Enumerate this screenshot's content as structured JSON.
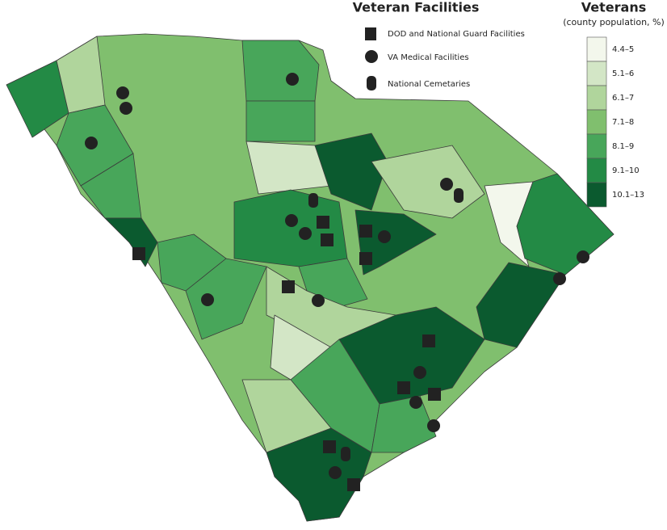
{
  "facilities": {
    "title": "Veteran Facilities",
    "items": [
      "DOD and National Guard Facilities",
      "VA Medical Facilities",
      "National Cemetaries"
    ]
  },
  "veterans": {
    "title": "Veterans",
    "subtitle": "(county population, %)",
    "classes": [
      {
        "label": "4.4–5",
        "color": "#f3f7ec"
      },
      {
        "label": "5.1–6",
        "color": "#d3e6c6"
      },
      {
        "label": "6.1–7",
        "color": "#b0d59c"
      },
      {
        "label": "7.1–8",
        "color": "#80bf6e"
      },
      {
        "label": "8.1–9",
        "color": "#48a65a"
      },
      {
        "label": "9.1–10",
        "color": "#238a45"
      },
      {
        "label": "10.1–13",
        "color": "#0b5a2f"
      }
    ]
  }
}
